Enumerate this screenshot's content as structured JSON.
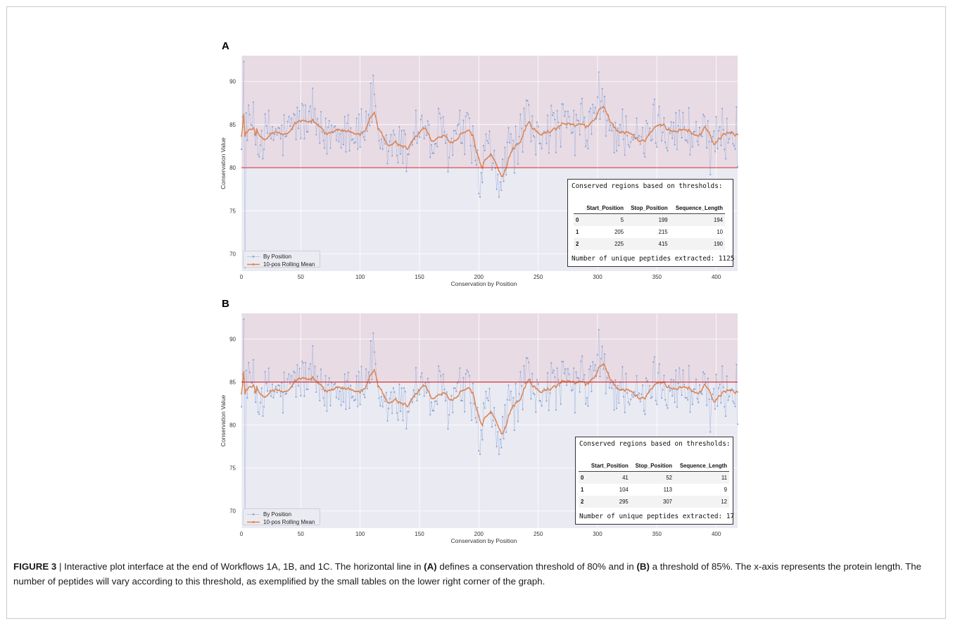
{
  "figure": {
    "label": "FIGURE 3",
    "caption_parts": [
      {
        "text": " | Interactive plot interface at the end of Workflows 1A, 1B, and 1C. The horizontal line in ",
        "bold": false
      },
      {
        "text": "(A)",
        "bold": true
      },
      {
        "text": " defines a conservation threshold of 80% and in ",
        "bold": false
      },
      {
        "text": "(B)",
        "bold": true
      },
      {
        "text": " a threshold of 85%. The x-axis represents the protein length. The number of peptides will vary according to this threshold, as exemplified by the small tables on the lower right corner of the graph.",
        "bold": false
      }
    ]
  },
  "colors": {
    "plot_bg": "#eaeaf2",
    "above_band": "#e8dbe4",
    "threshold_line": "#d62728",
    "points": "#8aa5d6",
    "rolling_mean": "#dd8452",
    "grid": "#ffffff"
  },
  "chart_data": [
    {
      "panel": "A",
      "type": "line",
      "xlabel": "Conservation by Position",
      "ylabel": "Conservation Value",
      "xlim": [
        0,
        418
      ],
      "ylim": [
        68,
        93
      ],
      "xticks": [
        0,
        50,
        100,
        150,
        200,
        250,
        300,
        350,
        400
      ],
      "yticks": [
        70,
        75,
        80,
        85,
        90
      ],
      "grid": true,
      "legend_position": "bottom-left",
      "threshold": 80,
      "series": [
        {
          "name": "By Position",
          "style": "points"
        },
        {
          "name": "10-pos Rolling Mean",
          "style": "line-markers"
        }
      ],
      "mean_profile": [
        [
          0,
          85.5
        ],
        [
          5,
          85.4
        ],
        [
          10,
          84.6
        ],
        [
          15,
          83.0
        ],
        [
          20,
          83.6
        ],
        [
          25,
          84.0
        ],
        [
          30,
          83.8
        ],
        [
          35,
          83.7
        ],
        [
          40,
          83.8
        ],
        [
          45,
          85.3
        ],
        [
          50,
          85.5
        ],
        [
          55,
          85.2
        ],
        [
          60,
          84.9
        ],
        [
          65,
          83.6
        ],
        [
          70,
          83.2
        ],
        [
          75,
          84.2
        ],
        [
          80,
          84.7
        ],
        [
          85,
          84.8
        ],
        [
          90,
          84.8
        ],
        [
          95,
          84.1
        ],
        [
          100,
          84.0
        ],
        [
          105,
          84.7
        ],
        [
          108,
          86.8
        ],
        [
          112,
          86.6
        ],
        [
          115,
          82.0
        ],
        [
          120,
          81.7
        ],
        [
          125,
          82.5
        ],
        [
          130,
          83.2
        ],
        [
          135,
          82.1
        ],
        [
          140,
          82.0
        ],
        [
          145,
          84.5
        ],
        [
          150,
          84.8
        ],
        [
          155,
          84.7
        ],
        [
          160,
          81.7
        ],
        [
          165,
          84.0
        ],
        [
          170,
          83.5
        ],
        [
          175,
          81.8
        ],
        [
          180,
          83.6
        ],
        [
          185,
          84.0
        ],
        [
          190,
          83.9
        ],
        [
          195,
          83.3
        ],
        [
          198,
          79.6
        ],
        [
          203,
          79.6
        ],
        [
          205,
          81.8
        ],
        [
          210,
          81.8
        ],
        [
          213,
          79.3
        ],
        [
          216,
          78.6
        ],
        [
          220,
          78.7
        ],
        [
          225,
          82.5
        ],
        [
          230,
          82.6
        ],
        [
          235,
          83.0
        ],
        [
          238,
          85.3
        ],
        [
          242,
          85.5
        ],
        [
          245,
          83.3
        ],
        [
          250,
          83.1
        ],
        [
          255,
          84.7
        ],
        [
          260,
          84.8
        ],
        [
          265,
          84.2
        ],
        [
          270,
          85.0
        ],
        [
          275,
          84.5
        ],
        [
          280,
          84.2
        ],
        [
          285,
          85.4
        ],
        [
          290,
          84.0
        ],
        [
          295,
          85.5
        ],
        [
          300,
          87.0
        ],
        [
          305,
          86.7
        ],
        [
          310,
          84.0
        ],
        [
          315,
          84.3
        ],
        [
          320,
          84.2
        ],
        [
          325,
          84.3
        ],
        [
          330,
          84.0
        ],
        [
          335,
          82.5
        ],
        [
          340,
          82.6
        ],
        [
          345,
          84.9
        ],
        [
          350,
          85.2
        ],
        [
          355,
          85.0
        ],
        [
          360,
          84.7
        ],
        [
          365,
          84.7
        ],
        [
          370,
          84.3
        ],
        [
          375,
          84.2
        ],
        [
          380,
          84.0
        ],
        [
          385,
          83.6
        ],
        [
          390,
          85.2
        ],
        [
          395,
          83.6
        ],
        [
          398,
          81.4
        ],
        [
          402,
          83.6
        ],
        [
          405,
          83.6
        ],
        [
          410,
          84.4
        ],
        [
          415,
          84.5
        ],
        [
          418,
          84.3
        ]
      ],
      "extreme_points": [
        [
          2,
          92.3
        ],
        [
          3,
          68.4
        ],
        [
          60,
          89.2
        ],
        [
          111,
          90.7
        ],
        [
          200,
          77.0
        ],
        [
          201,
          76.6
        ],
        [
          215,
          77.5
        ],
        [
          301,
          91.1
        ],
        [
          395,
          79.2
        ],
        [
          418,
          80.1
        ]
      ]
    },
    {
      "panel": "B",
      "type": "line",
      "xlabel": "Conservation by Position",
      "ylabel": "Conservation Value",
      "xlim": [
        0,
        418
      ],
      "ylim": [
        68,
        93
      ],
      "xticks": [
        0,
        50,
        100,
        150,
        200,
        250,
        300,
        350,
        400
      ],
      "yticks": [
        70,
        75,
        80,
        85,
        90
      ],
      "grid": true,
      "legend_position": "bottom-left",
      "threshold": 85,
      "series": [
        {
          "name": "By Position",
          "style": "points"
        },
        {
          "name": "10-pos Rolling Mean",
          "style": "line-markers"
        }
      ],
      "mean_profile": "same as panel A",
      "extreme_points": "same as panel A"
    }
  ],
  "tables": [
    {
      "panel": "A",
      "header": "Conserved regions based on thresholds:",
      "columns": [
        "",
        "Start_Position",
        "Stop_Position",
        "Sequence_Length"
      ],
      "rows": [
        [
          "0",
          "5",
          "199",
          "194"
        ],
        [
          "1",
          "205",
          "215",
          "10"
        ],
        [
          "2",
          "225",
          "415",
          "190"
        ]
      ],
      "footer": "Number of unique peptides extracted: 1125"
    },
    {
      "panel": "B",
      "header": "Conserved regions based on thresholds:",
      "columns": [
        "",
        "Start_Position",
        "Stop_Position",
        "Sequence_Length"
      ],
      "rows": [
        [
          "0",
          "41",
          "52",
          "11"
        ],
        [
          "1",
          "104",
          "113",
          "9"
        ],
        [
          "2",
          "295",
          "307",
          "12"
        ]
      ],
      "footer": "Number of unique peptides extracted: 17"
    }
  ]
}
